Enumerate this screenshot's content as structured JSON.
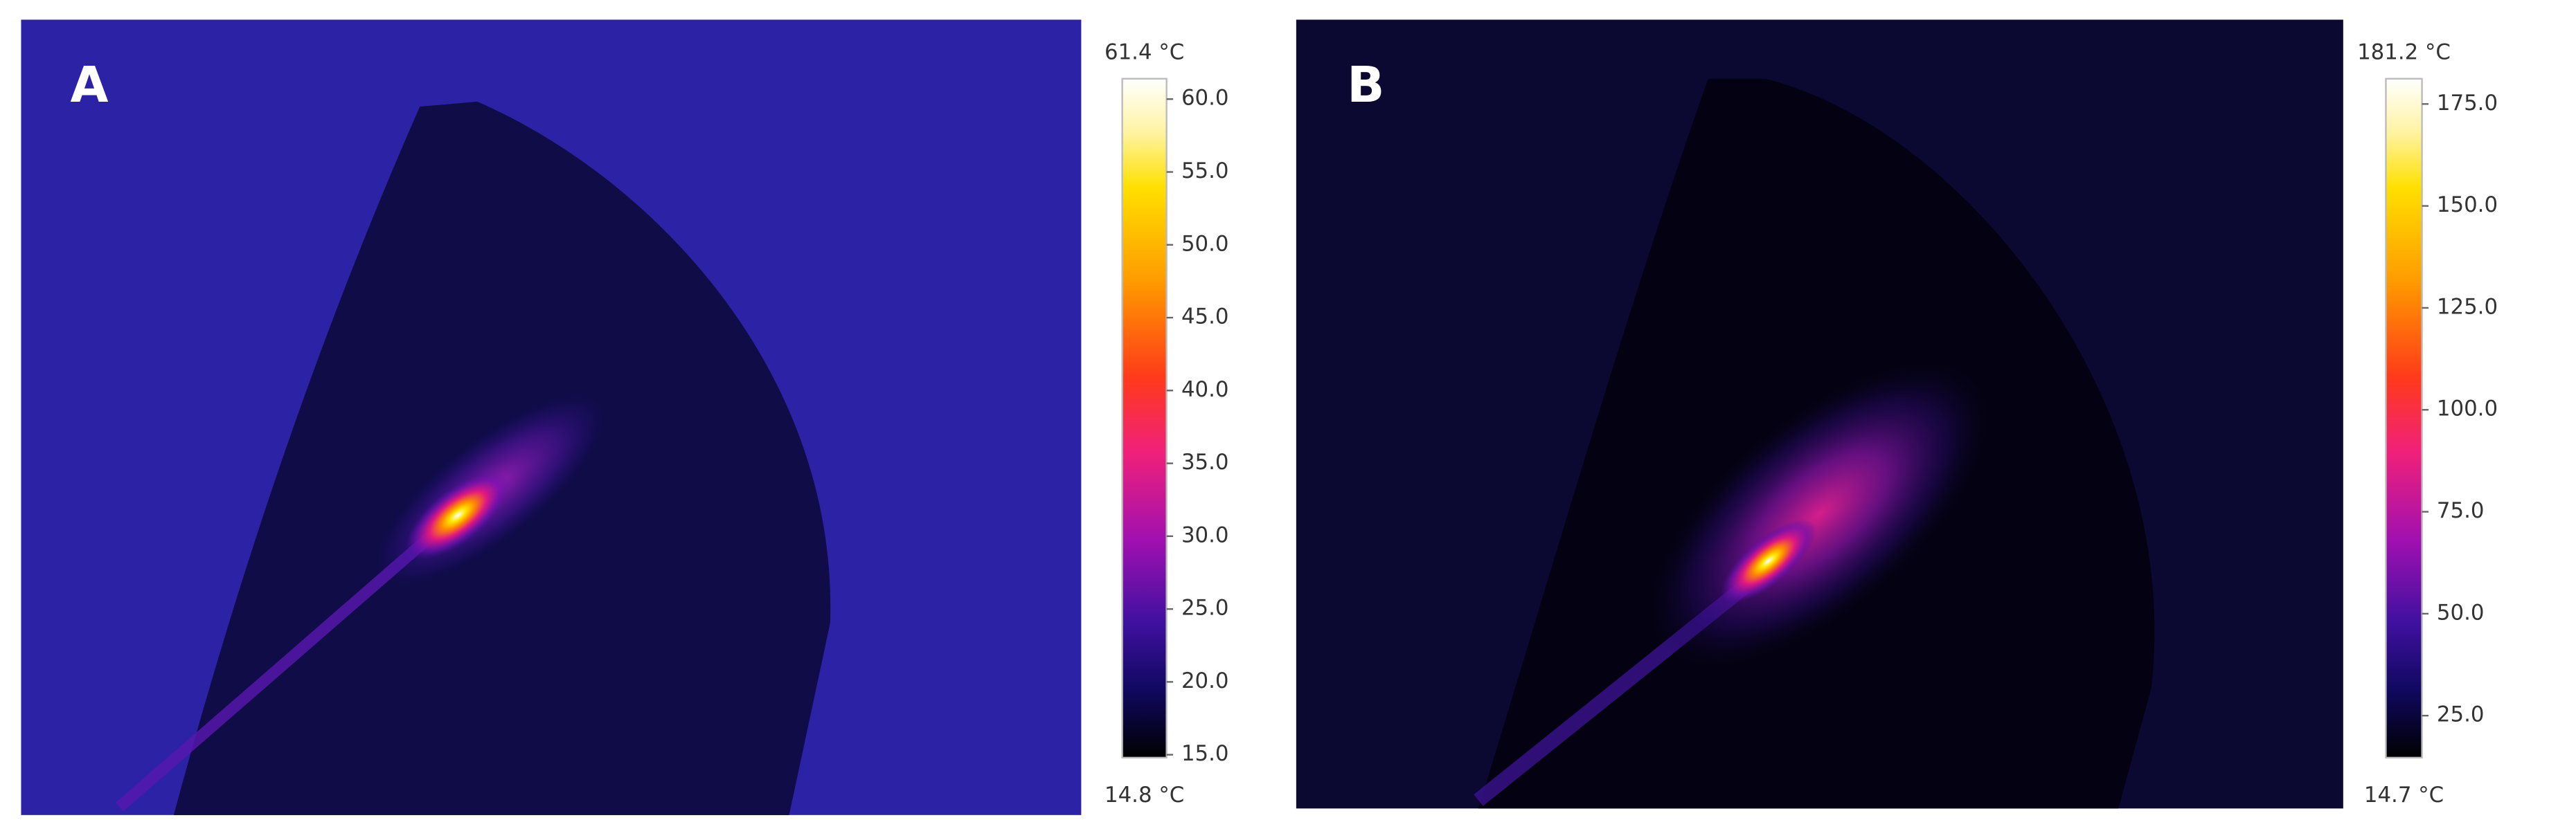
{
  "panels": [
    {
      "label": "A",
      "scale": {
        "max": {
          "value": 61.4,
          "label": "61.4 °C"
        },
        "min": {
          "value": 14.8,
          "label": "14.8 °C"
        },
        "ticks": [
          {
            "value": 60,
            "label": "60.0"
          },
          {
            "value": 55,
            "label": "55.0"
          },
          {
            "value": 50,
            "label": "50.0"
          },
          {
            "value": 45,
            "label": "45.0"
          },
          {
            "value": 40,
            "label": "40.0"
          },
          {
            "value": 35,
            "label": "35.0"
          },
          {
            "value": 30,
            "label": "30.0"
          },
          {
            "value": 25,
            "label": "25.0"
          },
          {
            "value": 20,
            "label": "20.0"
          },
          {
            "value": 15,
            "label": "15.0"
          }
        ]
      }
    },
    {
      "label": "B",
      "scale": {
        "max": {
          "value": 181.2,
          "label": "181.2 °C"
        },
        "min": {
          "value": 14.7,
          "label": "14.7 °C"
        },
        "ticks": [
          {
            "value": 175,
            "label": "175.0"
          },
          {
            "value": 150,
            "label": "150.0"
          },
          {
            "value": 125,
            "label": "125.0"
          },
          {
            "value": 100,
            "label": "100.0"
          },
          {
            "value": 75,
            "label": "75.0"
          },
          {
            "value": 50,
            "label": "50.0"
          },
          {
            "value": 25,
            "label": "25.0"
          }
        ]
      }
    }
  ]
}
